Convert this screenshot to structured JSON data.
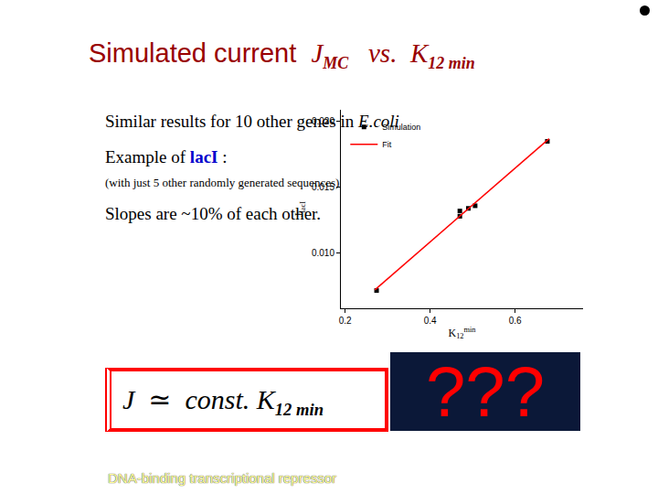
{
  "chart_data": {
    "type": "scatter",
    "x_title": {
      "text": "K",
      "sub": "12",
      "sup": "min"
    },
    "y_title": {
      "text": "J",
      "sub": "lacI"
    },
    "series": [
      {
        "name": "Simulation",
        "type": "scatter",
        "marker": "square",
        "color": "#000000",
        "x": [
          0.274,
          0.47,
          0.47,
          0.49,
          0.506,
          0.676
        ],
        "values": [
          0.00715,
          0.0128,
          0.0132,
          0.0134,
          0.0136,
          0.0185
        ]
      },
      {
        "name": "Fit",
        "type": "line",
        "line_style": "solid",
        "color": "#ff0000",
        "x": [
          0.27,
          0.68
        ],
        "values": [
          0.0072,
          0.0187
        ]
      }
    ],
    "xlim": [
      0.19,
      0.76
    ],
    "ylim": [
      0.0058,
      0.0209
    ],
    "xticks": [
      0.2,
      0.4,
      0.6
    ],
    "yticks": [
      {
        "value": 0.01,
        "label": "0.010"
      },
      {
        "value": 0.015,
        "label": "0.015"
      },
      {
        "value": 0.02,
        "label": "0.020"
      }
    ],
    "legend": "upper left",
    "grid": false
  },
  "slide": {
    "title": [
      {
        "text": "Simulated current  ",
        "font": "sans"
      },
      {
        "text": "J",
        "font": "serif",
        "italic": true
      },
      {
        "text": "MC",
        "font": "serif",
        "italic": true,
        "bold": true,
        "sub": true
      },
      {
        "text": "   vs.  ",
        "font": "serif",
        "italic": true
      },
      {
        "text": "K",
        "font": "serif",
        "italic": true
      },
      {
        "text": "12 min",
        "font": "serif",
        "italic": true,
        "bold": true,
        "sub": true
      }
    ],
    "body": [
      {
        "parts": [
          {
            "text": "Similar results for 10 other genes in "
          },
          {
            "text": "E.coli",
            "italic": true
          }
        ]
      },
      {
        "parts": [
          {
            "text": "Example of "
          },
          {
            "text": "lacI",
            "bold": true,
            "color": "#0000cc"
          },
          {
            "text": " :"
          }
        ]
      },
      {
        "small": true,
        "parts": [
          {
            "text": "(with just 5 other randomly generated sequences)"
          }
        ]
      },
      {
        "parts": [
          {
            "text": "Slopes are ~10% of each other."
          }
        ]
      }
    ],
    "formula": [
      {
        "text": "J",
        "italic": true
      },
      {
        "text": "  ≃  "
      },
      {
        "text": "const. ",
        "italic": true
      },
      {
        "text": "K",
        "italic": true
      },
      {
        "text": "12 min",
        "italic": true,
        "bold": true,
        "sub": true
      }
    ],
    "question": "???",
    "footer": "DNA-binding transcriptional repressor"
  }
}
